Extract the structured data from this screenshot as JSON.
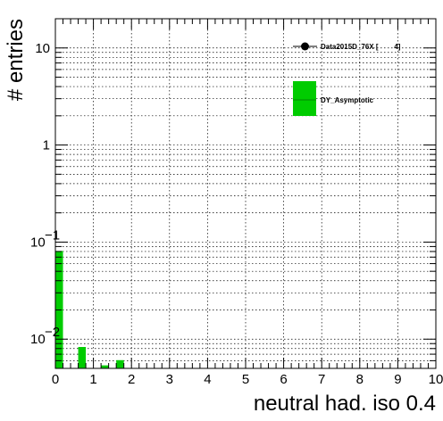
{
  "chart_data": {
    "type": "bar",
    "title": "",
    "xlabel": "neutral had. iso 0.4",
    "ylabel": "# entries",
    "xlim": [
      0,
      10
    ],
    "ylim": [
      0.005,
      20
    ],
    "yscale": "log",
    "grid": true,
    "x_ticks": [
      "0",
      "1",
      "2",
      "3",
      "4",
      "5",
      "6",
      "7",
      "8",
      "9",
      "10"
    ],
    "y_ticks": [
      {
        "value": 10,
        "base": "10",
        "exp": ""
      },
      {
        "value": 1,
        "base": "1",
        "exp": ""
      },
      {
        "value": 0.1,
        "base": "10",
        "exp": "−1"
      },
      {
        "value": 0.01,
        "base": "10",
        "exp": "−2"
      }
    ],
    "bin_width": 0.2,
    "series": [
      {
        "name": "DY_Asymptotic",
        "color": "#00cc00",
        "bins": [
          {
            "x0": 0.0,
            "value": 0.08
          },
          {
            "x0": 0.6,
            "value": 0.0082
          },
          {
            "x0": 1.2,
            "value": 0.0053
          },
          {
            "x0": 1.6,
            "value": 0.006
          }
        ]
      }
    ],
    "legend": {
      "placement": "top-right",
      "entries": [
        {
          "label": "Data2015D_76X [        4]",
          "style": "marker"
        },
        {
          "label": "DY_Asymptotic",
          "style": "fill",
          "color": "#00cc00"
        }
      ]
    }
  }
}
